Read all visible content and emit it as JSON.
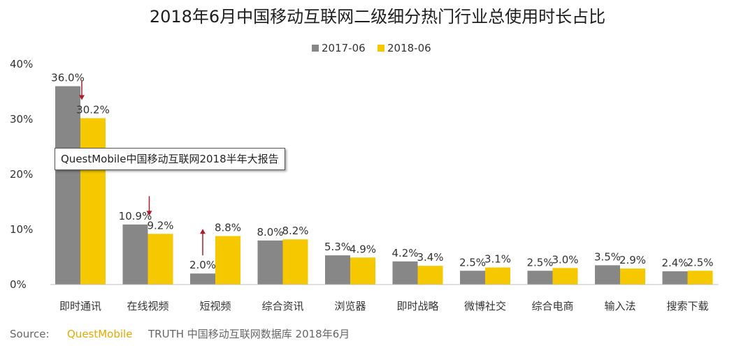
{
  "chart_data": {
    "type": "bar",
    "title": "2018年6月中国移动互联网二级细分热门行业总使用时长占比",
    "categories": [
      "即时通讯",
      "在线视频",
      "短视频",
      "综合资讯",
      "浏览器",
      "即时战略",
      "微博社交",
      "综合电商",
      "输入法",
      "搜索下载"
    ],
    "series": [
      {
        "name": "2017-06",
        "color": "#878787",
        "values": [
          36.0,
          10.9,
          2.0,
          8.0,
          5.3,
          4.2,
          2.5,
          2.5,
          3.5,
          2.4
        ],
        "labels": [
          "36.0%",
          "10.9%",
          "2.0%",
          "8.0%",
          "5.3%",
          "4.2%",
          "2.5%",
          "2.5%",
          "3.5%",
          "2.4%"
        ]
      },
      {
        "name": "2018-06",
        "color": "#f5c800",
        "values": [
          30.2,
          9.2,
          8.8,
          8.2,
          4.9,
          3.4,
          3.1,
          3.0,
          2.9,
          2.5
        ],
        "labels": [
          "30.2%",
          "9.2%",
          "8.8%",
          "8.2%",
          "4.9%",
          "3.4%",
          "3.1%",
          "3.0%",
          "2.9%",
          "2.5%"
        ]
      }
    ],
    "ylim": [
      0,
      40
    ],
    "yticks": [
      "0%",
      "10%",
      "20%",
      "30%",
      "40%"
    ],
    "grid": false,
    "legend_position": "top-center",
    "arrows": [
      {
        "category": "即时通讯",
        "direction": "down",
        "color": "#b01a2a"
      },
      {
        "category": "在线视频",
        "direction": "down",
        "color": "#b01a2a"
      },
      {
        "category": "短视频",
        "direction": "up",
        "color": "#b01a2a"
      }
    ]
  },
  "watermark": "QuestMobile中国移动互联网2018半年大报告",
  "source": {
    "label": "Source:",
    "brand": "QuestMobile",
    "rest": "TRUTH 中国移动互联网数据库 2018年6月"
  }
}
